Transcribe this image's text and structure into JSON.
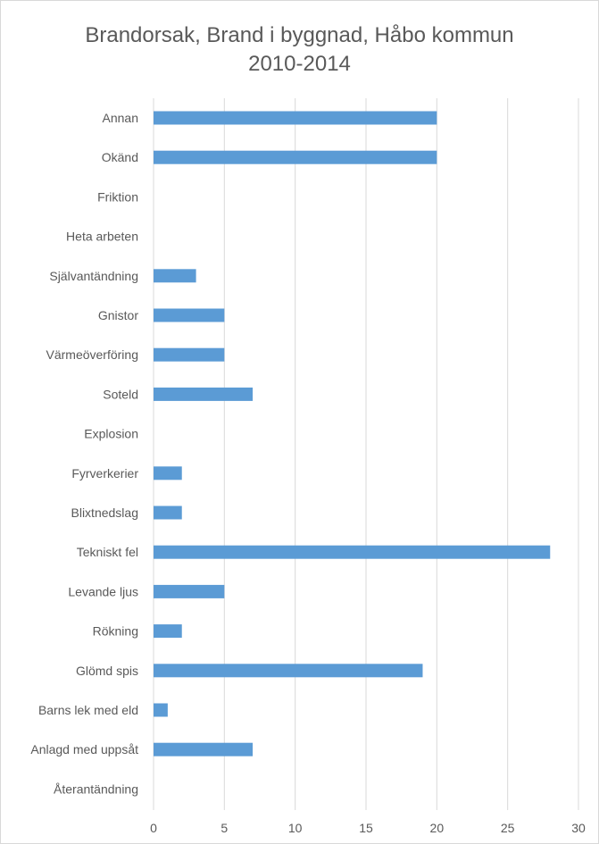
{
  "chart_data": {
    "type": "bar",
    "orientation": "horizontal",
    "title_line1": "Brandorsak, Brand i byggnad, Håbo kommun",
    "title_line2": "2010-2014",
    "xlabel": "",
    "ylabel": "",
    "categories": [
      "Annan",
      "Okänd",
      "Friktion",
      "Heta arbeten",
      "Självantändning",
      "Gnistor",
      "Värmeöverföring",
      "Soteld",
      "Explosion",
      "Fyrverkerier",
      "Blixtnedslag",
      "Tekniskt fel",
      "Levande ljus",
      "Rökning",
      "Glömd spis",
      "Barns lek med eld",
      "Anlagd med uppsåt",
      "Återantändning"
    ],
    "values": [
      20,
      20,
      0,
      0,
      3,
      5,
      5,
      7,
      0,
      2,
      2,
      28,
      5,
      2,
      19,
      1,
      7,
      0
    ],
    "xlim": [
      0,
      30
    ],
    "xticks": [
      "0",
      "5",
      "10",
      "15",
      "20",
      "25",
      "30"
    ],
    "grid": "vertical",
    "legend": "none",
    "bar_color": "#5b9bd5",
    "grid_color": "#d9d9d9",
    "text_color": "#595959"
  }
}
